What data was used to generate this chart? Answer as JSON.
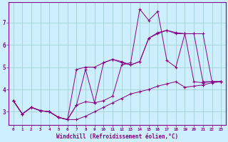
{
  "xlabel": "Windchill (Refroidissement éolien,°C)",
  "background_color": "#cceeff",
  "grid_color": "#99cccc",
  "line_color": "#880088",
  "xlim": [
    -0.5,
    23.5
  ],
  "ylim": [
    2.4,
    7.9
  ],
  "xticks": [
    0,
    1,
    2,
    3,
    4,
    5,
    6,
    7,
    8,
    9,
    10,
    11,
    12,
    13,
    14,
    15,
    16,
    17,
    18,
    19,
    20,
    21,
    22,
    23
  ],
  "yticks": [
    3,
    4,
    5,
    6,
    7
  ],
  "hours": [
    0,
    1,
    2,
    3,
    4,
    5,
    6,
    7,
    8,
    9,
    10,
    11,
    12,
    13,
    14,
    15,
    16,
    17,
    18,
    19,
    20,
    21,
    22,
    23
  ],
  "line1": [
    3.5,
    2.9,
    3.2,
    3.05,
    3.0,
    2.75,
    2.65,
    2.65,
    2.8,
    3.0,
    3.2,
    3.4,
    3.6,
    3.8,
    3.9,
    4.0,
    4.15,
    4.25,
    4.35,
    4.1,
    4.15,
    4.2,
    4.3,
    4.35
  ],
  "line2": [
    3.5,
    2.9,
    3.2,
    3.05,
    3.0,
    2.75,
    2.65,
    3.3,
    3.45,
    3.4,
    3.5,
    3.7,
    5.1,
    5.2,
    7.6,
    7.1,
    7.5,
    5.3,
    5.0,
    6.5,
    4.35,
    4.3,
    4.35,
    4.35
  ],
  "line3": [
    3.5,
    2.9,
    3.2,
    3.05,
    3.0,
    2.75,
    2.65,
    3.3,
    4.9,
    3.4,
    5.2,
    5.35,
    5.25,
    5.1,
    5.25,
    6.3,
    6.5,
    6.65,
    6.5,
    6.5,
    6.5,
    4.35,
    4.35,
    4.35
  ],
  "line4": [
    3.5,
    2.9,
    3.2,
    3.05,
    3.0,
    2.75,
    2.65,
    4.9,
    5.0,
    5.0,
    5.2,
    5.35,
    5.2,
    5.1,
    5.25,
    6.3,
    6.55,
    6.65,
    6.55,
    6.5,
    6.5,
    6.5,
    4.35,
    4.35
  ]
}
